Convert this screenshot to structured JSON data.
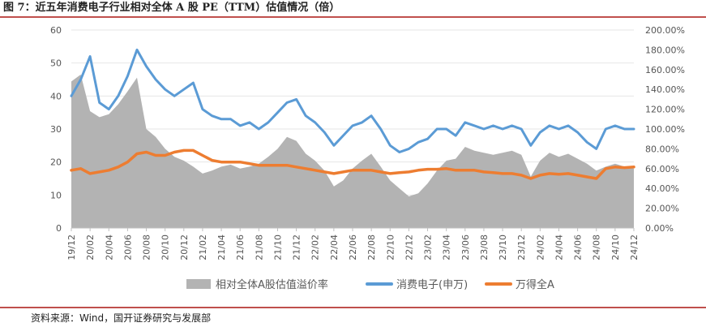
{
  "figure": {
    "title": "图 7：近五年消费电子行业相对全体 A 股 PE（TTM）估值情况（倍）",
    "source": "资料来源：Wind，国开证券研究与发展部"
  },
  "chart_data": {
    "type": "line",
    "left_axis": {
      "ticks": [
        "0",
        "10",
        "20",
        "30",
        "40",
        "50",
        "60"
      ],
      "ylim": [
        0,
        60
      ]
    },
    "right_axis": {
      "ticks": [
        "0.00%",
        "20.00%",
        "40.00%",
        "60.00%",
        "80.00%",
        "100.00%",
        "120.00%",
        "140.00%",
        "160.00%",
        "180.00%",
        "200.00%"
      ],
      "ylim": [
        0,
        200
      ]
    },
    "x_ticks": [
      "19/12",
      "20/02",
      "20/04",
      "20/06",
      "20/08",
      "20/10",
      "20/12",
      "21/02",
      "21/04",
      "21/06",
      "21/08",
      "21/10",
      "21/12",
      "22/02",
      "22/04",
      "22/06",
      "22/08",
      "22/10",
      "22/12",
      "23/02",
      "23/04",
      "23/06",
      "23/08",
      "23/10",
      "23/12",
      "24/02",
      "24/04",
      "24/06",
      "24/08",
      "24/10",
      "24/12"
    ],
    "legend_position": "bottom",
    "series": [
      {
        "name": "相对全体A股估值溢价率",
        "axis": "right",
        "kind": "area",
        "color": "#b3b3b3",
        "points": [
          [
            "19/12",
            148
          ],
          [
            "20/01",
            155
          ],
          [
            "20/02",
            118
          ],
          [
            "20/03",
            112
          ],
          [
            "20/04",
            115
          ],
          [
            "20/05",
            125
          ],
          [
            "20/06",
            138
          ],
          [
            "20/07",
            152
          ],
          [
            "20/08",
            100
          ],
          [
            "20/09",
            92
          ],
          [
            "20/10",
            80
          ],
          [
            "20/11",
            72
          ],
          [
            "20/12",
            68
          ],
          [
            "21/01",
            62
          ],
          [
            "21/02",
            55
          ],
          [
            "21/03",
            58
          ],
          [
            "21/04",
            62
          ],
          [
            "21/05",
            64
          ],
          [
            "21/06",
            60
          ],
          [
            "21/07",
            62
          ],
          [
            "21/08",
            65
          ],
          [
            "21/09",
            72
          ],
          [
            "21/10",
            80
          ],
          [
            "21/11",
            92
          ],
          [
            "21/12",
            88
          ],
          [
            "22/01",
            75
          ],
          [
            "22/02",
            68
          ],
          [
            "22/03",
            58
          ],
          [
            "22/04",
            42
          ],
          [
            "22/05",
            48
          ],
          [
            "22/06",
            60
          ],
          [
            "22/07",
            68
          ],
          [
            "22/08",
            75
          ],
          [
            "22/09",
            62
          ],
          [
            "22/10",
            48
          ],
          [
            "22/11",
            40
          ],
          [
            "22/12",
            32
          ],
          [
            "23/01",
            35
          ],
          [
            "23/02",
            45
          ],
          [
            "23/03",
            58
          ],
          [
            "23/04",
            68
          ],
          [
            "23/05",
            70
          ],
          [
            "23/06",
            82
          ],
          [
            "23/07",
            78
          ],
          [
            "23/08",
            76
          ],
          [
            "23/09",
            74
          ],
          [
            "23/10",
            76
          ],
          [
            "23/11",
            78
          ],
          [
            "23/12",
            74
          ],
          [
            "24/01",
            52
          ],
          [
            "24/02",
            68
          ],
          [
            "24/03",
            76
          ],
          [
            "24/04",
            72
          ],
          [
            "24/05",
            75
          ],
          [
            "24/06",
            70
          ],
          [
            "24/07",
            65
          ],
          [
            "24/08",
            58
          ],
          [
            "24/09",
            62
          ],
          [
            "24/10",
            65
          ],
          [
            "24/11",
            62
          ],
          [
            "24/12",
            60
          ]
        ]
      },
      {
        "name": "消费电子(申万)",
        "axis": "left",
        "kind": "line",
        "color": "#5b9bd5",
        "points": [
          [
            "19/12",
            40
          ],
          [
            "20/01",
            45
          ],
          [
            "20/02",
            52
          ],
          [
            "20/03",
            38
          ],
          [
            "20/04",
            36
          ],
          [
            "20/05",
            40
          ],
          [
            "20/06",
            46
          ],
          [
            "20/07",
            54
          ],
          [
            "20/08",
            49
          ],
          [
            "20/09",
            45
          ],
          [
            "20/10",
            42
          ],
          [
            "20/11",
            40
          ],
          [
            "20/12",
            42
          ],
          [
            "21/01",
            44
          ],
          [
            "21/02",
            36
          ],
          [
            "21/03",
            34
          ],
          [
            "21/04",
            33
          ],
          [
            "21/05",
            33
          ],
          [
            "21/06",
            31
          ],
          [
            "21/07",
            32
          ],
          [
            "21/08",
            30
          ],
          [
            "21/09",
            32
          ],
          [
            "21/10",
            35
          ],
          [
            "21/11",
            38
          ],
          [
            "21/12",
            39
          ],
          [
            "22/01",
            34
          ],
          [
            "22/02",
            32
          ],
          [
            "22/03",
            29
          ],
          [
            "22/04",
            25
          ],
          [
            "22/05",
            28
          ],
          [
            "22/06",
            31
          ],
          [
            "22/07",
            32
          ],
          [
            "22/08",
            34
          ],
          [
            "22/09",
            30
          ],
          [
            "22/10",
            25
          ],
          [
            "22/11",
            23
          ],
          [
            "22/12",
            24
          ],
          [
            "23/01",
            26
          ],
          [
            "23/02",
            27
          ],
          [
            "23/03",
            30
          ],
          [
            "23/04",
            30
          ],
          [
            "23/05",
            28
          ],
          [
            "23/06",
            32
          ],
          [
            "23/07",
            31
          ],
          [
            "23/08",
            30
          ],
          [
            "23/09",
            31
          ],
          [
            "23/10",
            30
          ],
          [
            "23/11",
            31
          ],
          [
            "23/12",
            30
          ],
          [
            "24/01",
            25
          ],
          [
            "24/02",
            29
          ],
          [
            "24/03",
            31
          ],
          [
            "24/04",
            30
          ],
          [
            "24/05",
            31
          ],
          [
            "24/06",
            29
          ],
          [
            "24/07",
            26
          ],
          [
            "24/08",
            24
          ],
          [
            "24/09",
            30
          ],
          [
            "24/10",
            31
          ],
          [
            "24/11",
            30
          ],
          [
            "24/12",
            30
          ]
        ]
      },
      {
        "name": "万得全A",
        "axis": "left",
        "kind": "line",
        "color": "#ed7d31",
        "points": [
          [
            "19/12",
            17.5
          ],
          [
            "20/01",
            18
          ],
          [
            "20/02",
            16.5
          ],
          [
            "20/03",
            17
          ],
          [
            "20/04",
            17.5
          ],
          [
            "20/05",
            18.5
          ],
          [
            "20/06",
            20
          ],
          [
            "20/07",
            22.5
          ],
          [
            "20/08",
            23
          ],
          [
            "20/09",
            22
          ],
          [
            "20/10",
            22
          ],
          [
            "20/11",
            23
          ],
          [
            "20/12",
            23.5
          ],
          [
            "21/01",
            23.5
          ],
          [
            "21/02",
            22
          ],
          [
            "21/03",
            20.5
          ],
          [
            "21/04",
            20
          ],
          [
            "21/05",
            20
          ],
          [
            "21/06",
            20
          ],
          [
            "21/07",
            19.5
          ],
          [
            "21/08",
            19
          ],
          [
            "21/09",
            19
          ],
          [
            "21/10",
            19
          ],
          [
            "21/11",
            19
          ],
          [
            "21/12",
            18.5
          ],
          [
            "22/01",
            18
          ],
          [
            "22/02",
            17.5
          ],
          [
            "22/03",
            17
          ],
          [
            "22/04",
            16.5
          ],
          [
            "22/05",
            17
          ],
          [
            "22/06",
            17.5
          ],
          [
            "22/07",
            17.5
          ],
          [
            "22/08",
            17.5
          ],
          [
            "22/09",
            17
          ],
          [
            "22/10",
            16.5
          ],
          [
            "22/11",
            16.8
          ],
          [
            "22/12",
            17
          ],
          [
            "23/01",
            17.5
          ],
          [
            "23/02",
            17.8
          ],
          [
            "23/03",
            17.8
          ],
          [
            "23/04",
            18
          ],
          [
            "23/05",
            17.5
          ],
          [
            "23/06",
            17.5
          ],
          [
            "23/07",
            17.5
          ],
          [
            "23/08",
            17
          ],
          [
            "23/09",
            16.8
          ],
          [
            "23/10",
            16.5
          ],
          [
            "23/11",
            16.5
          ],
          [
            "23/12",
            16
          ],
          [
            "24/01",
            15
          ],
          [
            "24/02",
            16
          ],
          [
            "24/03",
            16.5
          ],
          [
            "24/04",
            16.3
          ],
          [
            "24/05",
            16.5
          ],
          [
            "24/06",
            16
          ],
          [
            "24/07",
            15.5
          ],
          [
            "24/08",
            15
          ],
          [
            "24/09",
            18
          ],
          [
            "24/10",
            18.5
          ],
          [
            "24/11",
            18.3
          ],
          [
            "24/12",
            18.5
          ]
        ]
      }
    ]
  }
}
